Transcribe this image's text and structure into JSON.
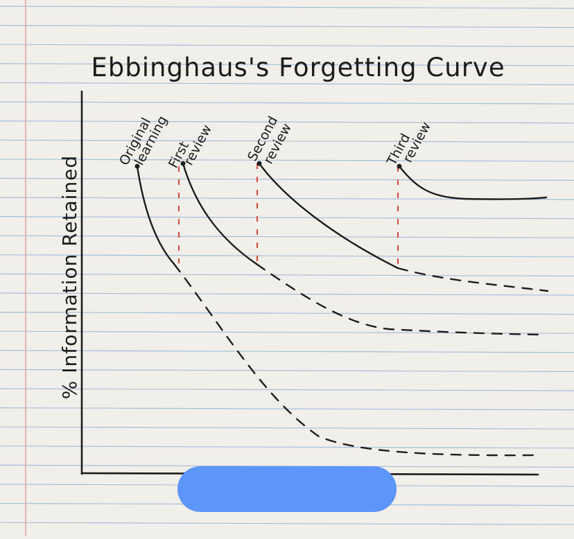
{
  "chart_data": {
    "type": "line",
    "title": "Ebbinghaus's Forgetting Curve",
    "ylabel": "% Information Retained",
    "xlabel": "",
    "grid": true,
    "annotations": [
      {
        "id": "original",
        "lines": [
          "Original",
          "learning"
        ]
      },
      {
        "id": "first",
        "lines": [
          "First",
          "review"
        ]
      },
      {
        "id": "second",
        "lines": [
          "Second",
          "review"
        ]
      },
      {
        "id": "third",
        "lines": [
          "Third",
          "review"
        ]
      }
    ],
    "colors": {
      "paper": "#f1efe9",
      "ruled_line": "#a7bfd8",
      "margin_line": "#e7a3a6",
      "ink": "#1c1c1c",
      "review_marker": "#d7463b",
      "redaction": "#5d95f8"
    }
  }
}
